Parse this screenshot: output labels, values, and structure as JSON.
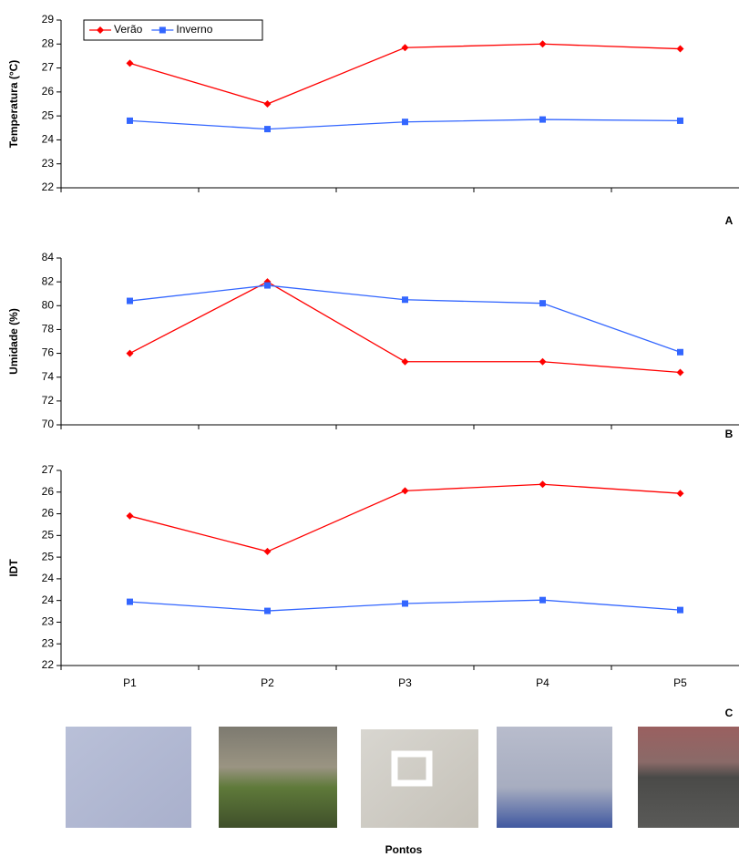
{
  "chart_data": [
    {
      "type": "line",
      "y_label": "Temperatura (°C)",
      "panel_label": "A",
      "ylim": [
        22,
        29
      ],
      "yticks": [
        22,
        23,
        24,
        25,
        26,
        27,
        28,
        29
      ],
      "legend": "top-left",
      "series": [
        {
          "name": "Verão",
          "color": "#ff0000",
          "marker": "diamond",
          "values": [
            27.2,
            25.5,
            27.85,
            28.0,
            27.8
          ]
        },
        {
          "name": "Inverno",
          "color": "#3366ff",
          "marker": "square",
          "values": [
            24.8,
            24.45,
            24.75,
            24.85,
            24.8
          ]
        }
      ]
    },
    {
      "type": "line",
      "y_label": "Umidade (%)",
      "panel_label": "B",
      "ylim": [
        70,
        84
      ],
      "yticks": [
        70,
        72,
        74,
        76,
        78,
        80,
        82,
        84
      ],
      "series": [
        {
          "color": "#ff0000",
          "marker": "diamond",
          "values": [
            76,
            82,
            75.3,
            75.3,
            74.4
          ]
        },
        {
          "color": "#3366ff",
          "marker": "square",
          "values": [
            80.4,
            81.7,
            80.5,
            80.2,
            76.1
          ]
        }
      ]
    },
    {
      "type": "line",
      "y_label": "IDT",
      "panel_label": "C",
      "x_label": "Pontos",
      "categories": [
        "P1",
        "P2",
        "P3",
        "P4",
        "P5"
      ],
      "ylim": [
        22,
        26.5
      ],
      "yticks": [
        22,
        {
          "value": 22.5,
          "label": "23"
        },
        23,
        {
          "value": 23.5,
          "label": "24"
        },
        24,
        {
          "value": 24.5,
          "label": "25"
        },
        25,
        {
          "value": 25.5,
          "label": "26"
        },
        26,
        {
          "value": 26.5,
          "label": "27"
        }
      ],
      "series": [
        {
          "color": "#ff0000",
          "marker": "diamond",
          "values": [
            25.45,
            24.63,
            26.03,
            26.18,
            25.97
          ]
        },
        {
          "color": "#3366ff",
          "marker": "square",
          "values": [
            23.47,
            23.26,
            23.43,
            23.51,
            23.28
          ]
        }
      ]
    }
  ]
}
